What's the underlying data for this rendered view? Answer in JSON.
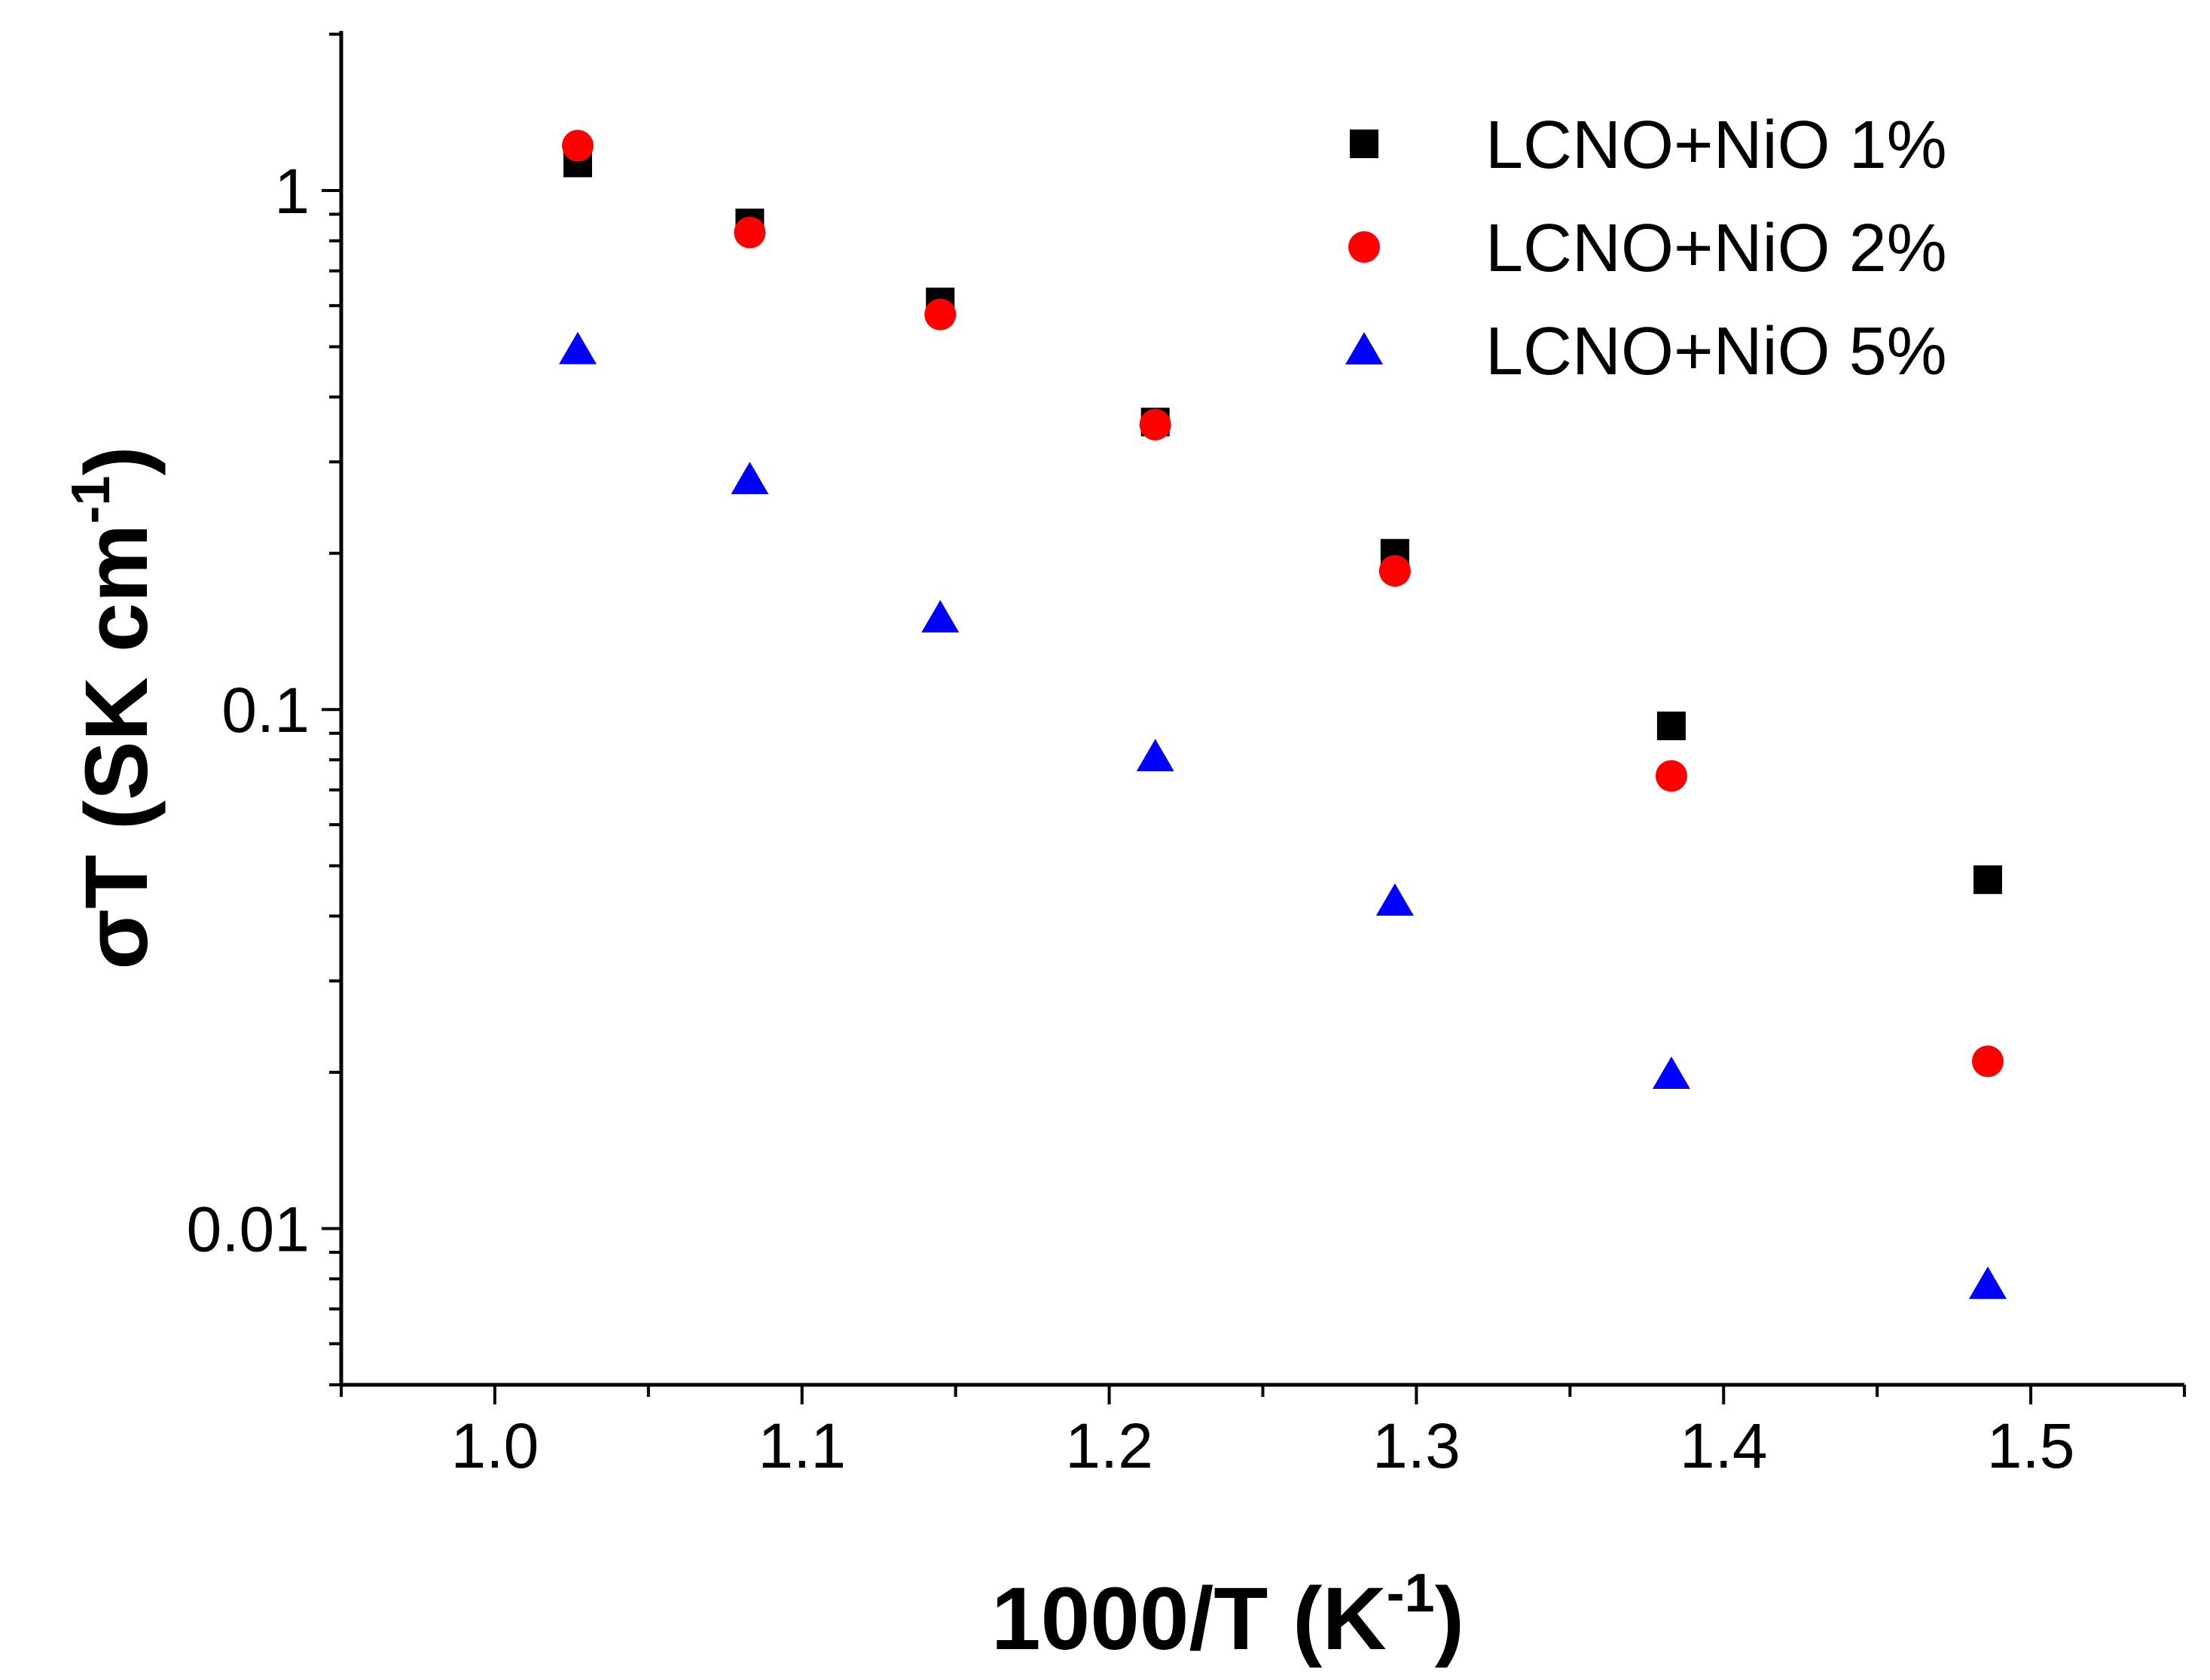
{
  "chart_data": {
    "type": "scatter",
    "title": "",
    "xlabel": "1000/T (K",
    "xlabel_sup": "-1",
    "xlabel_close": ")",
    "ylabel": "σT (SK cm",
    "ylabel_sup": "-1",
    "ylabel_close": ")",
    "xlim": [
      0.95,
      1.55
    ],
    "ylim": [
      0.005,
      2.03
    ],
    "yscale": "log",
    "x_ticks": [
      "1.0",
      "1.1",
      "1.2",
      "1.3",
      "1.4",
      "1.5"
    ],
    "x_tick_values": [
      1.0,
      1.1,
      1.2,
      1.3,
      1.4,
      1.5
    ],
    "y_ticks": [
      "0.01",
      "0.1",
      "1"
    ],
    "y_tick_values": [
      0.01,
      0.1,
      1
    ],
    "grid": false,
    "legend_position": "top-right",
    "x": [
      1.027,
      1.083,
      1.145,
      1.215,
      1.293,
      1.383,
      1.486
    ],
    "series": [
      {
        "name": "LCNO+NiO 1%",
        "marker": "square",
        "color": "#000000",
        "values": [
          1.13,
          0.866,
          0.61,
          0.358,
          0.2,
          0.093,
          0.047
        ]
      },
      {
        "name": "LCNO+NiO 2%",
        "marker": "circle",
        "color": "#ff0000",
        "values": [
          1.22,
          0.83,
          0.577,
          0.354,
          0.185,
          0.0745,
          0.021
        ]
      },
      {
        "name": "LCNO+NiO 5%",
        "marker": "triangle",
        "color": "#0000ff",
        "values": [
          0.493,
          0.277,
          0.15,
          0.081,
          0.0427,
          0.0198,
          0.0078
        ]
      }
    ]
  }
}
